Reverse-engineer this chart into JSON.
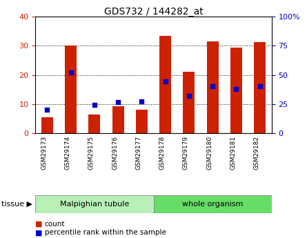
{
  "title": "GDS732 / 144282_at",
  "categories": [
    "GSM29173",
    "GSM29174",
    "GSM29175",
    "GSM29176",
    "GSM29177",
    "GSM29178",
    "GSM29179",
    "GSM29180",
    "GSM29181",
    "GSM29182"
  ],
  "count_values": [
    5.5,
    30.2,
    6.5,
    9.2,
    8.2,
    33.5,
    21.2,
    31.5,
    29.5,
    31.2
  ],
  "percentile_values": [
    20.0,
    52.0,
    24.5,
    26.5,
    27.5,
    44.5,
    32.0,
    40.5,
    38.0,
    40.5
  ],
  "tissue_groups": [
    {
      "label": "Malpighian tubule",
      "start": 0,
      "end": 5
    },
    {
      "label": "whole organism",
      "start": 5,
      "end": 10
    }
  ],
  "tissue_colors": [
    "#b8f0b8",
    "#66dd66"
  ],
  "ylim_left": [
    0,
    40
  ],
  "ylim_right": [
    0,
    100
  ],
  "yticks_left": [
    0,
    10,
    20,
    30,
    40
  ],
  "yticks_right": [
    0,
    25,
    50,
    75,
    100
  ],
  "bar_color": "#cc2200",
  "dot_color": "#0000cc",
  "bar_width": 0.5,
  "legend_count_label": "count",
  "legend_pct_label": "percentile rank within the sample",
  "left_tick_color": "#cc2200",
  "right_tick_color": "#0000cc",
  "title_fontsize": 10
}
